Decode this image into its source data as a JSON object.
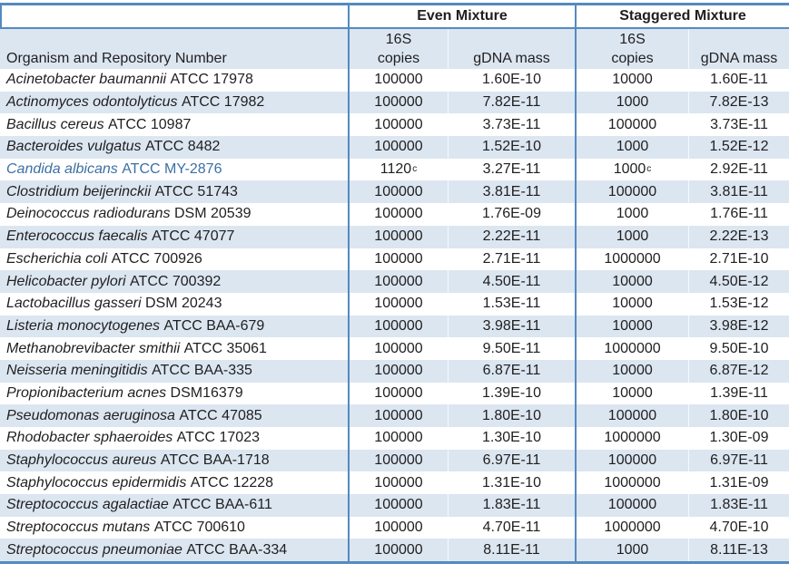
{
  "table": {
    "colors": {
      "border": "#548ABF",
      "stripe_background": "#DCE6F1",
      "highlight_text": "#3C70A4",
      "text": "#1f1f1f"
    },
    "group_headers": [
      "Even Mixture",
      "Staggered Mixture"
    ],
    "organism_header": "Organism and Repository Number",
    "sub_headers": {
      "s16": "16S",
      "copies": "copies",
      "gdna": "gDNA mass"
    },
    "footnote_marker": "c",
    "rows": [
      {
        "name": "Acinetobacter baumannii",
        "repo": "ATCC 17978",
        "even_copies": "100000",
        "even_gdna": "1.60E-10",
        "stag_copies": "10000",
        "stag_gdna": "1.60E-11"
      },
      {
        "name": "Actinomyces odontolyticus",
        "repo": "ATCC 17982",
        "even_copies": "100000",
        "even_gdna": "7.82E-11",
        "stag_copies": "1000",
        "stag_gdna": "7.82E-13"
      },
      {
        "name": "Bacillus cereus",
        "repo": "ATCC 10987",
        "even_copies": "100000",
        "even_gdna": "3.73E-11",
        "stag_copies": "100000",
        "stag_gdna": "3.73E-11"
      },
      {
        "name": "Bacteroides vulgatus",
        "repo": "ATCC 8482",
        "even_copies": "100000",
        "even_gdna": "1.52E-10",
        "stag_copies": "1000",
        "stag_gdna": "1.52E-12"
      },
      {
        "name": "Candida albicans",
        "repo": "ATCC MY-2876",
        "even_copies": "1120",
        "even_sup": "c",
        "even_gdna": "3.27E-11",
        "stag_copies": "1000",
        "stag_sup": "c",
        "stag_gdna": "2.92E-11",
        "highlight": true
      },
      {
        "name": "Clostridium beijerinckii",
        "repo": "ATCC 51743",
        "even_copies": "100000",
        "even_gdna": "3.81E-11",
        "stag_copies": "100000",
        "stag_gdna": "3.81E-11"
      },
      {
        "name": "Deinococcus radiodurans",
        "repo": "DSM 20539",
        "even_copies": "100000",
        "even_gdna": "1.76E-09",
        "stag_copies": "1000",
        "stag_gdna": "1.76E-11"
      },
      {
        "name": "Enterococcus faecalis",
        "repo": "ATCC 47077",
        "even_copies": "100000",
        "even_gdna": "2.22E-11",
        "stag_copies": "1000",
        "stag_gdna": "2.22E-13"
      },
      {
        "name": "Escherichia coli",
        "repo": "ATCC 700926",
        "even_copies": "100000",
        "even_gdna": "2.71E-11",
        "stag_copies": "1000000",
        "stag_gdna": "2.71E-10"
      },
      {
        "name": "Helicobacter pylori",
        "repo": "ATCC 700392",
        "even_copies": "100000",
        "even_gdna": "4.50E-11",
        "stag_copies": "10000",
        "stag_gdna": "4.50E-12"
      },
      {
        "name": "Lactobacillus gasseri",
        "repo": "DSM 20243",
        "even_copies": "100000",
        "even_gdna": "1.53E-11",
        "stag_copies": "10000",
        "stag_gdna": "1.53E-12"
      },
      {
        "name": "Listeria monocytogenes",
        "repo": "ATCC BAA-679",
        "even_copies": "100000",
        "even_gdna": "3.98E-11",
        "stag_copies": "10000",
        "stag_gdna": "3.98E-12"
      },
      {
        "name": "Methanobrevibacter smithii",
        "repo": "ATCC 35061",
        "even_copies": "100000",
        "even_gdna": "9.50E-11",
        "stag_copies": "1000000",
        "stag_gdna": "9.50E-10"
      },
      {
        "name": "Neisseria meningitidis",
        "repo": "ATCC BAA-335",
        "even_copies": "100000",
        "even_gdna": "6.87E-11",
        "stag_copies": "10000",
        "stag_gdna": "6.87E-12"
      },
      {
        "name": "Propionibacterium acnes",
        "repo": "DSM16379",
        "even_copies": "100000",
        "even_gdna": "1.39E-10",
        "stag_copies": "10000",
        "stag_gdna": "1.39E-11"
      },
      {
        "name": "Pseudomonas aeruginosa",
        "repo": "ATCC 47085",
        "even_copies": "100000",
        "even_gdna": "1.80E-10",
        "stag_copies": "100000",
        "stag_gdna": "1.80E-10"
      },
      {
        "name": "Rhodobacter sphaeroides",
        "repo": "ATCC 17023",
        "even_copies": "100000",
        "even_gdna": "1.30E-10",
        "stag_copies": "1000000",
        "stag_gdna": "1.30E-09"
      },
      {
        "name": "Staphylococcus aureus",
        "repo": "ATCC BAA-1718",
        "even_copies": "100000",
        "even_gdna": "6.97E-11",
        "stag_copies": "100000",
        "stag_gdna": "6.97E-11"
      },
      {
        "name": "Staphylococcus epidermidis",
        "repo": "ATCC 12228",
        "even_copies": "100000",
        "even_gdna": "1.31E-10",
        "stag_copies": "1000000",
        "stag_gdna": "1.31E-09"
      },
      {
        "name": "Streptococcus agalactiae",
        "repo": "ATCC BAA-611",
        "even_copies": "100000",
        "even_gdna": "1.83E-11",
        "stag_copies": "100000",
        "stag_gdna": "1.83E-11"
      },
      {
        "name": "Streptococcus mutans",
        "repo": "ATCC 700610",
        "even_copies": "100000",
        "even_gdna": "4.70E-11",
        "stag_copies": "1000000",
        "stag_gdna": "4.70E-10"
      },
      {
        "name": "Streptococcus pneumoniae",
        "repo": "ATCC BAA-334",
        "even_copies": "100000",
        "even_gdna": "8.11E-11",
        "stag_copies": "1000",
        "stag_gdna": "8.11E-13"
      }
    ]
  }
}
